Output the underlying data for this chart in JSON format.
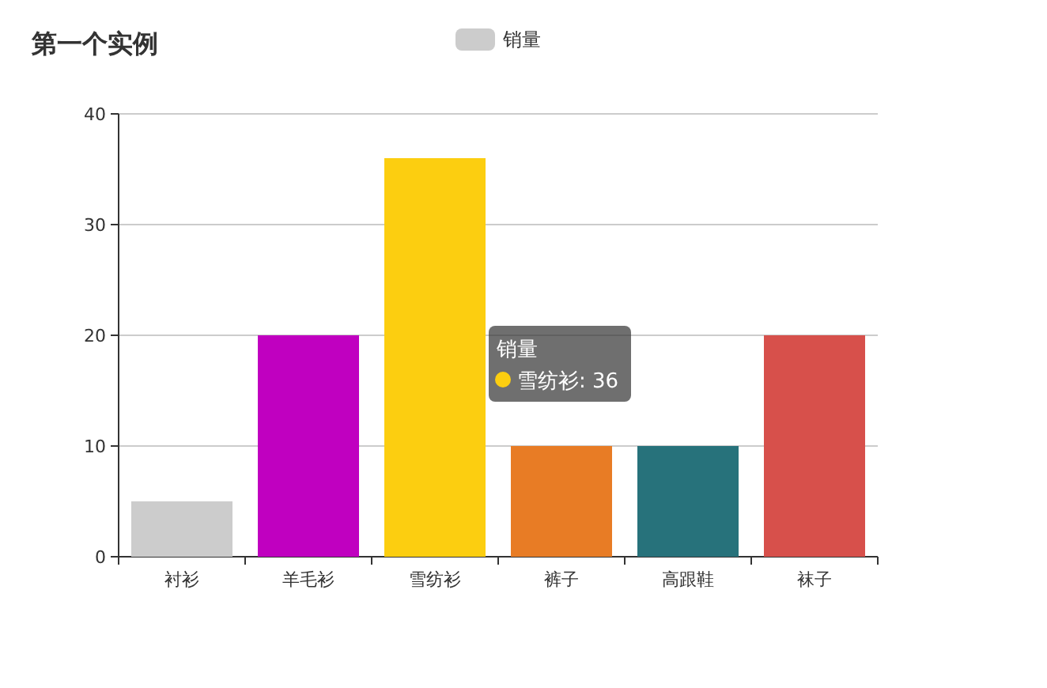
{
  "chart_data": {
    "type": "bar",
    "title": "第一个实例",
    "categories": [
      "衬衫",
      "羊毛衫",
      "雪纺衫",
      "裤子",
      "高跟鞋",
      "袜子"
    ],
    "series": [
      {
        "name": "销量",
        "color": "#cccccc",
        "colors": [
          "#cccccc",
          "#c000c0",
          "#fcce10",
          "#e87c25",
          "#27727b",
          "#d7504b"
        ],
        "values": [
          5,
          20,
          36,
          10,
          10,
          20
        ]
      }
    ],
    "ylim": [
      0,
      40
    ],
    "yticks": [
      0,
      10,
      20,
      30,
      40
    ],
    "grid": "y",
    "legend": "top",
    "annotations": [
      "销量",
      "雪纺衫: 36"
    ]
  }
}
